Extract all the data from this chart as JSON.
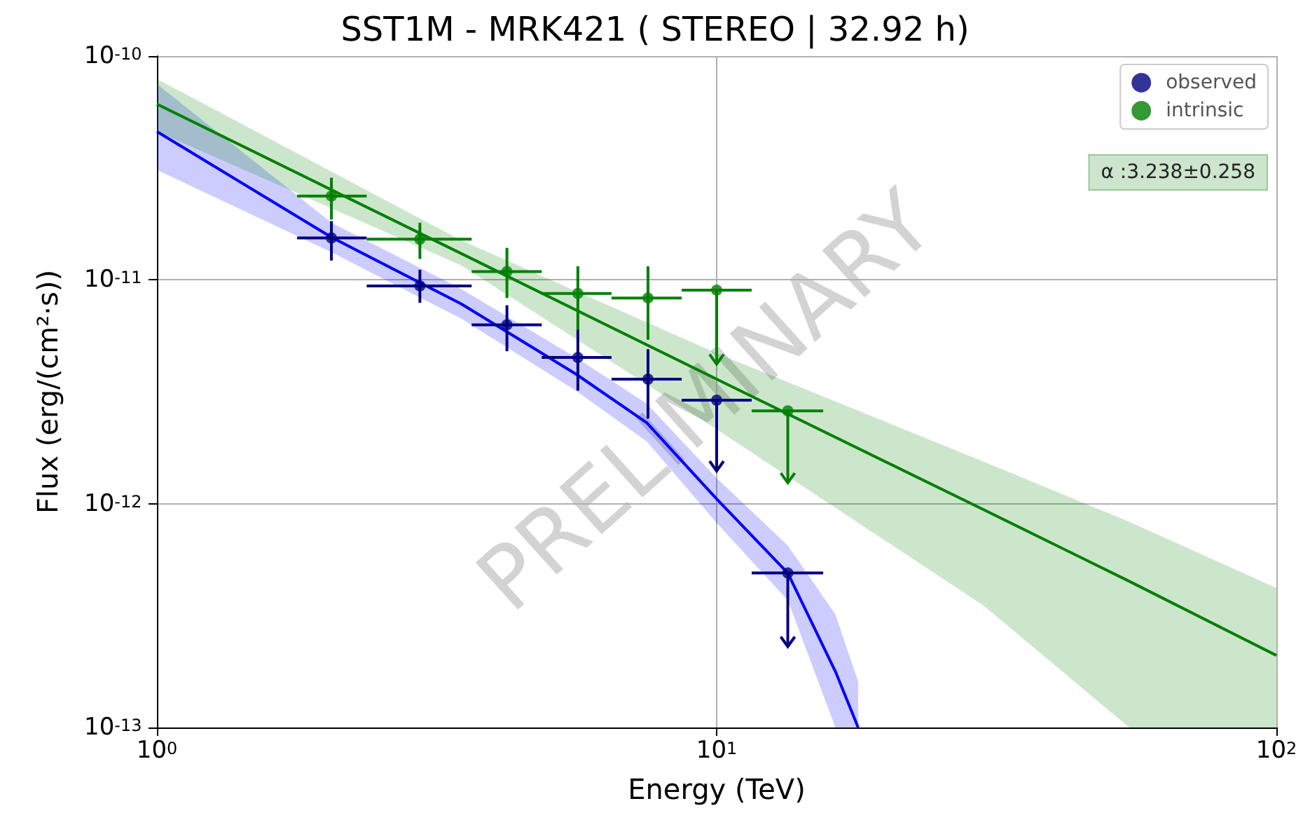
{
  "chart_data": {
    "type": "scatter",
    "title": "SST1M - MRK421 ( STEREO | 32.92 h)",
    "xlabel": "Energy (TeV)",
    "ylabel": "Flux (erg/(cm²·s))",
    "log": "xy",
    "grid": true,
    "legend": "top right",
    "marker": "circle",
    "xlim": [
      1,
      100
    ],
    "ylim": [
      1e-13,
      1e-10
    ],
    "xticks": [
      {
        "value": 1,
        "label": "10$^{0}$"
      },
      {
        "value": 10,
        "label": "10$^{1}$"
      },
      {
        "value": 100,
        "label": "10$^{2}$"
      }
    ],
    "yticks": [
      {
        "value": 1e-13,
        "label": "10$^{-13}$"
      },
      {
        "value": 1e-12,
        "label": "10$^{-12}$"
      },
      {
        "value": 1e-11,
        "label": "10$^{-11}$"
      },
      {
        "value": 1e-10,
        "label": "10$^{-10}$"
      }
    ],
    "annotations": [
      "α :3.238±0.258",
      "PRELIMINARY"
    ],
    "series": [
      {
        "name": "observed",
        "color": "#000080",
        "x": [
          2.05,
          2.95,
          4.22,
          5.65,
          7.54,
          10,
          13.4
        ],
        "values": [
          1.54e-11,
          9.4e-12,
          6.3e-12,
          4.5e-12,
          3.6e-12,
          2.9e-12,
          4.9e-13
        ],
        "errors": [
          [
            1.22e-11,
            1.83e-11
          ],
          [
            7.9e-12,
            1.11e-11
          ],
          [
            4.8e-12,
            7.7e-12
          ],
          [
            3.2e-12,
            6e-12
          ],
          [
            2.4e-12,
            4.9e-12
          ],
          [
            1.4e-12,
            2.9e-12
          ],
          [
            2.3e-13,
            4.9e-13
          ]
        ],
        "xerrors": [
          [
            1.78,
            2.37
          ],
          [
            2.37,
            3.65
          ],
          [
            3.65,
            4.87
          ],
          [
            4.87,
            6.49
          ],
          [
            6.49,
            8.66
          ],
          [
            8.66,
            11.55
          ],
          [
            11.55,
            15.5
          ]
        ]
      },
      {
        "name": "intrinsic",
        "color": "#008000",
        "x": [
          2.05,
          2.95,
          4.22,
          5.65,
          7.54,
          10,
          13.4
        ],
        "values": [
          2.37e-11,
          1.52e-11,
          1.09e-11,
          8.7e-12,
          8.3e-12,
          9e-12,
          2.6e-12
        ],
        "errors": [
          [
            1.86e-11,
            2.86e-11
          ],
          [
            1.24e-11,
            1.8e-11
          ],
          [
            8.3e-12,
            1.39e-11
          ],
          [
            6e-12,
            1.15e-11
          ],
          [
            5.4e-12,
            1.15e-11
          ],
          [
            4.2e-12,
            9e-12
          ],
          [
            1.24e-12,
            2.6e-12
          ]
        ],
        "xerrors": [
          [
            1.78,
            2.37
          ],
          [
            2.37,
            3.65
          ],
          [
            3.65,
            4.87
          ],
          [
            4.87,
            6.49
          ],
          [
            6.49,
            8.66
          ],
          [
            8.66,
            11.55
          ],
          [
            11.55,
            15.5
          ]
        ]
      },
      {
        "type": "line",
        "marker": "none",
        "color": "#0000ff",
        "x": [
          1,
          2.05,
          3.5,
          5.6,
          7.5,
          10,
          13.4,
          16.3,
          17.9
        ],
        "values": [
          4.6e-11,
          1.55e-11,
          7.8e-12,
          3.8e-12,
          2.3e-12,
          1.05e-12,
          4.9e-13,
          1.78e-13,
          1e-13
        ],
        "lower": [
          3.1e-11,
          1.33e-11,
          6.7e-12,
          3.2e-12,
          1.9e-12,
          8.2e-13,
          3.7e-13,
          1e-13,
          1e-13
        ],
        "upper": [
          7.5e-11,
          1.8e-11,
          9.1e-12,
          4.5e-12,
          2.8e-12,
          1.3e-12,
          6.5e-13,
          3.2e-13,
          1.6e-13
        ]
      },
      {
        "type": "line",
        "marker": "none",
        "color": "#008000",
        "x": [
          1,
          3.5,
          10,
          30,
          54.6,
          100
        ],
        "values": [
          6.1e-11,
          1.31e-11,
          3.6e-12,
          9.4e-13,
          4.5e-13,
          2.1e-13
        ],
        "lower": [
          4.6e-11,
          1.16e-11,
          2.15e-12,
          3.5e-13,
          1e-13,
          1e-13
        ],
        "upper": [
          7.9e-11,
          1.5e-11,
          4.7e-12,
          1.54e-12,
          8.3e-13,
          4.2e-13
        ]
      }
    ]
  }
}
